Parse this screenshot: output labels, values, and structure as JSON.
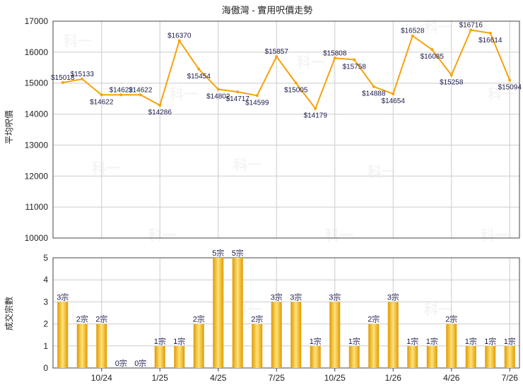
{
  "title": "海傲灣 - 實用呎價走勢",
  "watermark": "科一",
  "colors": {
    "line": "#f5a30a",
    "bar_light": "#ffe27a",
    "bar_dark": "#e09a00",
    "grid": "#cccccc",
    "axis": "#444444",
    "text": "#222222",
    "label": "#1a1a4a"
  },
  "chart_data": [
    {
      "type": "line",
      "title": "海傲灣 - 實用呎價走勢",
      "ylabel": "平均呎價",
      "ylim": [
        10000,
        17000
      ],
      "yticks": [
        "10000",
        "11000",
        "12000",
        "13000",
        "14000",
        "15000",
        "16000",
        "17000"
      ],
      "grid": true,
      "series": [
        {
          "values": [
            15018,
            15133,
            14622,
            14622,
            14622,
            14286,
            16370,
            15454,
            14802,
            14717,
            14599,
            15857,
            15005,
            14179,
            15808,
            15758,
            14888,
            14654,
            16528,
            16085,
            15258,
            16716,
            16614,
            15094
          ],
          "labels": [
            "$15018",
            "$15133",
            "$14622",
            "$14622",
            "$14622",
            "$14286",
            "$16370",
            "$15454",
            "$14802",
            "$14717",
            "$14599",
            "$15857",
            "$15005",
            "$14179",
            "$15808",
            "$15758",
            "$14888",
            "$14654",
            "$16528",
            "$16085",
            "$15258",
            "$16716",
            "$16614",
            "$15094"
          ]
        }
      ]
    },
    {
      "type": "bar",
      "ylabel": "成交宗數",
      "ylim": [
        0,
        5
      ],
      "yticks": [
        "0",
        "1",
        "2",
        "3",
        "4",
        "5"
      ],
      "grid": true,
      "xticks": [
        {
          "index": 2,
          "label": "10/24"
        },
        {
          "index": 5,
          "label": "1/25"
        },
        {
          "index": 8,
          "label": "4/25"
        },
        {
          "index": 11,
          "label": "7/25"
        },
        {
          "index": 14,
          "label": "10/25"
        },
        {
          "index": 17,
          "label": "1/26"
        },
        {
          "index": 20,
          "label": "4/26"
        },
        {
          "index": 23,
          "label": "7/26"
        }
      ],
      "values": [
        3,
        2,
        2,
        0,
        0,
        1,
        1,
        2,
        5,
        5,
        2,
        3,
        3,
        1,
        3,
        1,
        2,
        3,
        1,
        1,
        2,
        1,
        1,
        1
      ],
      "labels": [
        "3宗",
        "2宗",
        "2宗",
        "0宗",
        "0宗",
        "1宗",
        "1宗",
        "2宗",
        "5宗",
        "5宗",
        "2宗",
        "3宗",
        "3宗",
        "1宗",
        "3宗",
        "1宗",
        "2宗",
        "3宗",
        "1宗",
        "1宗",
        "2宗",
        "1宗",
        "1宗",
        "1宗"
      ]
    }
  ]
}
